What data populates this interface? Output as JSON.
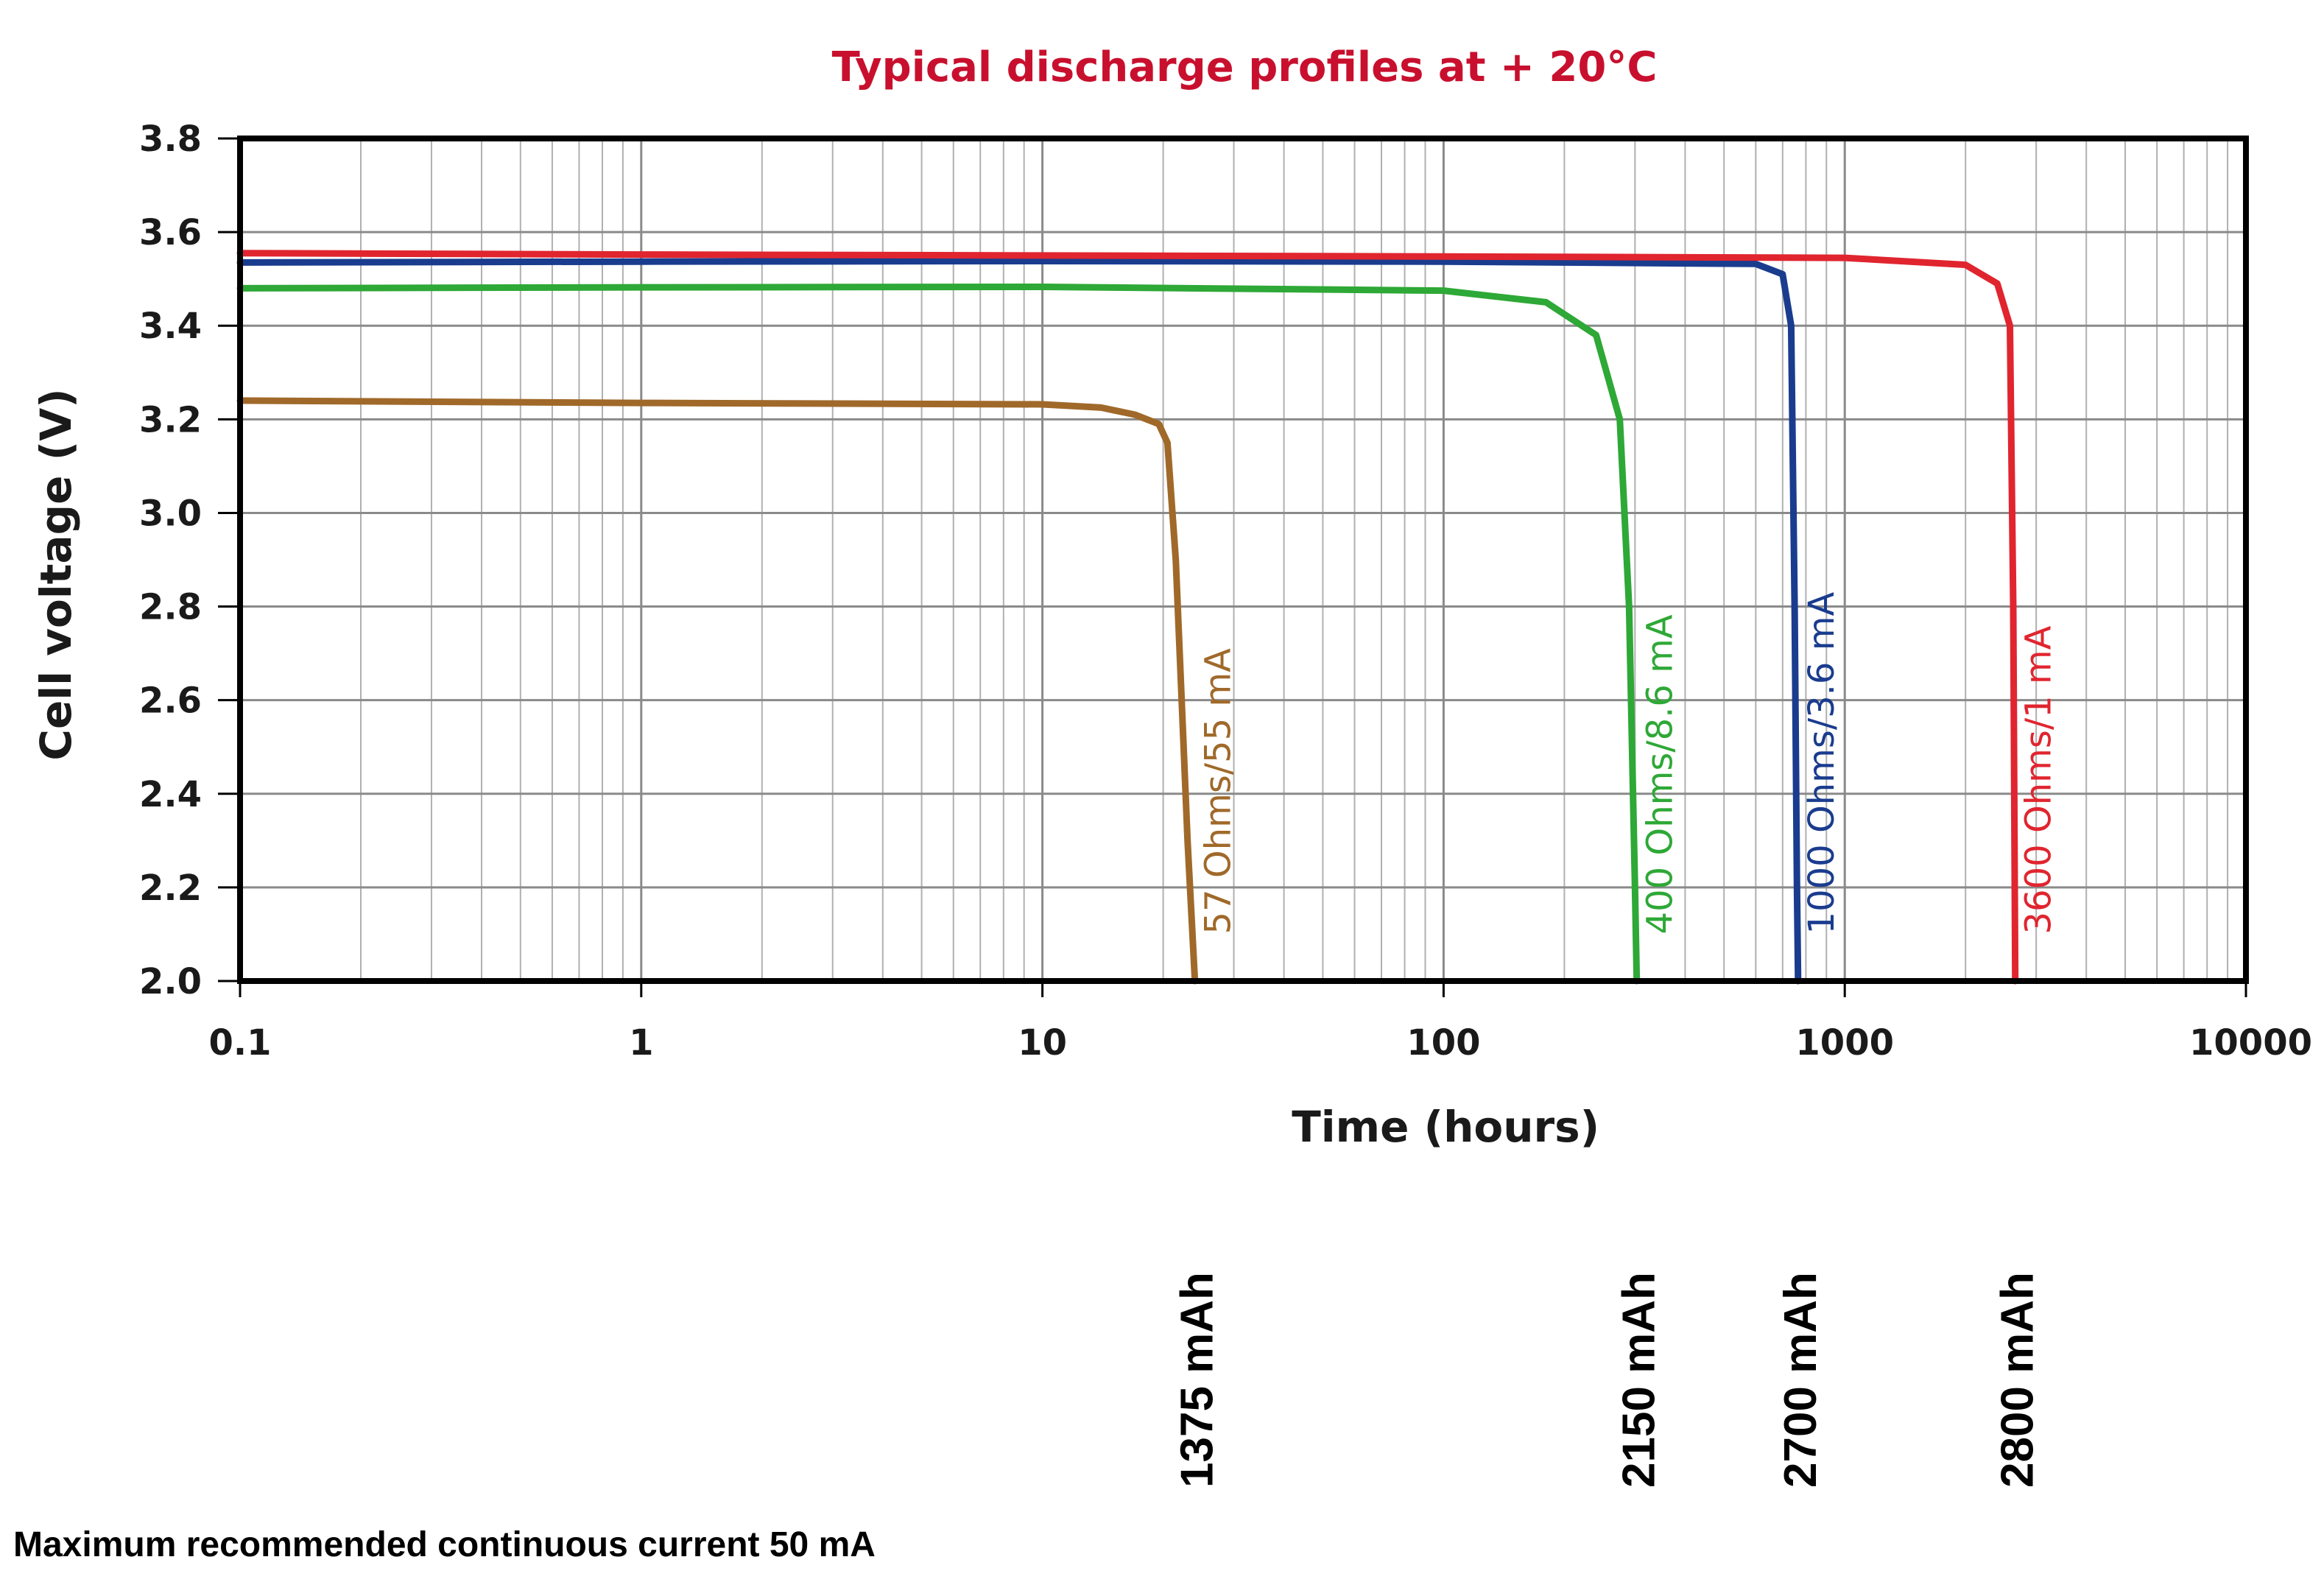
{
  "chart_data": {
    "type": "line",
    "title": "Typical discharge profiles at + 20°C",
    "title_color": "#c8102e",
    "xlabel": "Time (hours)",
    "ylabel": "Cell voltage (V)",
    "x_scale": "log",
    "xlim": [
      0.1,
      10000
    ],
    "ylim": [
      2.0,
      3.8
    ],
    "x_ticks": [
      0.1,
      1,
      10,
      100,
      1000,
      10000
    ],
    "x_tick_labels": [
      "0.1",
      "1",
      "10",
      "100",
      "1000",
      "10000"
    ],
    "y_ticks": [
      2.0,
      2.2,
      2.4,
      2.6,
      2.8,
      3.0,
      3.2,
      3.4,
      3.6,
      3.8
    ],
    "y_tick_labels": [
      "2.0",
      "2.2",
      "2.4",
      "2.6",
      "2.8",
      "3.0",
      "3.2",
      "3.4",
      "3.6",
      "3.8"
    ],
    "grid": true,
    "series": [
      {
        "name": "57 Ohms/55 mA",
        "color": "#a0692a",
        "x": [
          0.1,
          1,
          10,
          14,
          17,
          19.5,
          20.5,
          21.5,
          23,
          24
        ],
        "y": [
          3.24,
          3.235,
          3.232,
          3.225,
          3.21,
          3.19,
          3.15,
          2.9,
          2.3,
          2.0
        ]
      },
      {
        "name": "400 Ohms/8.6 mA",
        "color": "#2ea836",
        "x": [
          0.1,
          1,
          10,
          100,
          180,
          240,
          275,
          290,
          300,
          303
        ],
        "y": [
          3.48,
          3.482,
          3.483,
          3.475,
          3.45,
          3.38,
          3.2,
          2.8,
          2.2,
          2.0
        ]
      },
      {
        "name": "1000 Ohms/3.6 mA",
        "color": "#1a3c8e",
        "x": [
          0.1,
          1,
          10,
          100,
          600,
          700,
          735,
          750,
          760,
          765
        ],
        "y": [
          3.535,
          3.537,
          3.538,
          3.537,
          3.532,
          3.51,
          3.4,
          2.8,
          2.2,
          2.0
        ]
      },
      {
        "name": "3600 Ohms/1 mA",
        "color": "#e0252f",
        "x": [
          0.1,
          1,
          10,
          100,
          1000,
          2000,
          2400,
          2580,
          2630,
          2660
        ],
        "y": [
          3.555,
          3.552,
          3.55,
          3.548,
          3.545,
          3.53,
          3.49,
          3.4,
          2.8,
          2.0
        ]
      }
    ],
    "capacity_labels": [
      {
        "x": 24,
        "text": "1375 mAh"
      },
      {
        "x": 303,
        "text": "2150 mAh"
      },
      {
        "x": 765,
        "text": "2700 mAh"
      },
      {
        "x": 2660,
        "text": "2800 mAh"
      }
    ]
  },
  "footnote": "Maximum recommended continuous current 50 mA"
}
